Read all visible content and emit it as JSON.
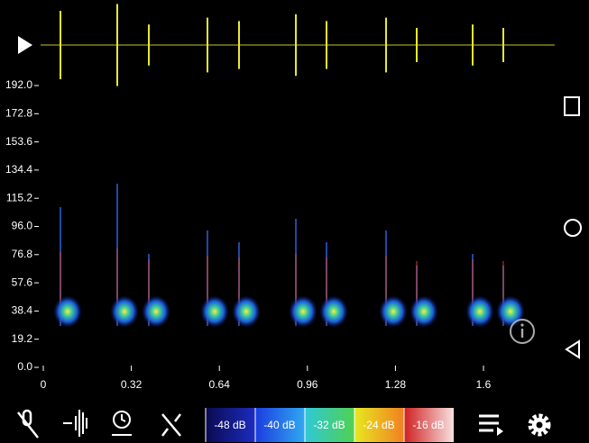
{
  "y_axis": {
    "labels": [
      "192.0",
      "172.8",
      "153.6",
      "134.4",
      "115.2",
      "96.0",
      "76.8",
      "57.6",
      "38.4",
      "19.2",
      "0.0"
    ]
  },
  "x_axis": {
    "labels": [
      "0",
      "0.32",
      "0.64",
      "0.96",
      "1.28",
      "1.6"
    ]
  },
  "db_scale": {
    "labels": [
      "-48 dB",
      "-40 dB",
      "-32 dB",
      "-24 dB",
      "-16 dB"
    ]
  }
}
